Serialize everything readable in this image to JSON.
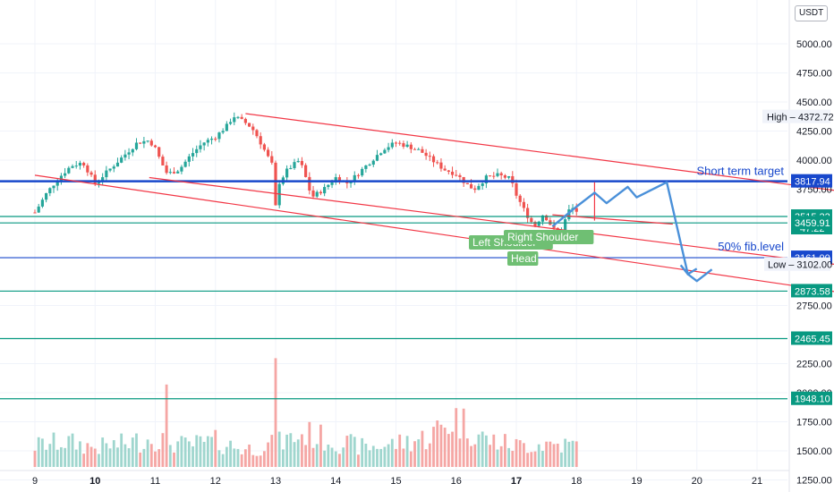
{
  "currency_label": "USDT",
  "colors": {
    "up": "#26a69a",
    "down": "#ef5350",
    "channel": "#f23645",
    "level_blue": "#1848cc",
    "level_teal": "#089981",
    "projection": "#4a90d9",
    "pattern_label": "#6fbf73",
    "price_current": "#26a69a"
  },
  "chart_data": {
    "type": "candlestick",
    "y_axis": {
      "range": [
        1150,
        5400
      ],
      "ticks": [
        "5000.00",
        "4750.00",
        "4500.00",
        "4250.00",
        "4000.00",
        "3750.00",
        "2750.00",
        "2250.00",
        "2000.00",
        "1750.00",
        "1500.00",
        "1250.00"
      ]
    },
    "x_axis": {
      "ticks": [
        {
          "label": "9",
          "bold": false
        },
        {
          "label": "10",
          "bold": true
        },
        {
          "label": "11",
          "bold": false
        },
        {
          "label": "12",
          "bold": false
        },
        {
          "label": "13",
          "bold": false
        },
        {
          "label": "14",
          "bold": false
        },
        {
          "label": "15",
          "bold": false
        },
        {
          "label": "16",
          "bold": false
        },
        {
          "label": "17",
          "bold": true
        },
        {
          "label": "18",
          "bold": false
        },
        {
          "label": "19",
          "bold": false
        },
        {
          "label": "20",
          "bold": false
        },
        {
          "label": "21",
          "bold": false
        }
      ]
    },
    "price_levels": [
      {
        "label": "3817.94",
        "value": 3817.94,
        "color": "level_blue",
        "thick": true
      },
      {
        "label": "3515.22",
        "sublabel": "47:22",
        "value": 3515.22,
        "color": "level_teal",
        "thick": false
      },
      {
        "label": "3459.91",
        "value": 3459.91,
        "color": "level_teal",
        "thick": false
      },
      {
        "label": "3161.00",
        "value": 3161.0,
        "color": "level_blue",
        "thick": false
      },
      {
        "label": "2873.58",
        "value": 2873.58,
        "color": "level_teal",
        "thick": false
      },
      {
        "label": "2465.45",
        "value": 2465.45,
        "color": "level_teal",
        "thick": false
      },
      {
        "label": "1948.10",
        "value": 1948.1,
        "color": "level_teal",
        "thick": false
      }
    ],
    "high_label": "High",
    "high_value": "4372.72",
    "low_label": "Low",
    "low_value": "3102.00",
    "annotations": {
      "short_term_target": "Short term target",
      "fib_level": "50% fib.level"
    },
    "pattern_labels": {
      "left_shoulder": "Left Shoulder",
      "head": "Head",
      "right_shoulder": "Right Shoulder"
    },
    "price_path": [
      [
        0,
        3550
      ],
      [
        0.2,
        3720
      ],
      [
        0.4,
        3850
      ],
      [
        0.6,
        3950
      ],
      [
        0.8,
        3980
      ],
      [
        1.0,
        3800
      ],
      [
        1.2,
        3900
      ],
      [
        1.5,
        4050
      ],
      [
        1.7,
        4150
      ],
      [
        1.9,
        4170
      ],
      [
        2.0,
        4100
      ],
      [
        2.1,
        3980
      ],
      [
        2.2,
        3880
      ],
      [
        2.4,
        3920
      ],
      [
        2.6,
        4050
      ],
      [
        2.8,
        4150
      ],
      [
        3.0,
        4200
      ],
      [
        3.2,
        4300
      ],
      [
        3.3,
        4380
      ],
      [
        3.4,
        4350
      ],
      [
        3.5,
        4320
      ],
      [
        3.6,
        4280
      ],
      [
        3.7,
        4200
      ],
      [
        3.8,
        4100
      ],
      [
        3.95,
        3950
      ],
      [
        4.0,
        3600
      ],
      [
        4.05,
        3800
      ],
      [
        4.2,
        3920
      ],
      [
        4.4,
        4000
      ],
      [
        4.5,
        3850
      ],
      [
        4.6,
        3680
      ],
      [
        4.8,
        3750
      ],
      [
        5.0,
        3850
      ],
      [
        5.2,
        3800
      ],
      [
        5.4,
        3900
      ],
      [
        5.6,
        4000
      ],
      [
        5.8,
        4100
      ],
      [
        6.0,
        4150
      ],
      [
        6.2,
        4120
      ],
      [
        6.4,
        4080
      ],
      [
        6.6,
        4000
      ],
      [
        6.8,
        3920
      ],
      [
        7.0,
        3880
      ],
      [
        7.2,
        3780
      ],
      [
        7.3,
        3750
      ],
      [
        7.5,
        3850
      ],
      [
        7.7,
        3870
      ],
      [
        7.9,
        3840
      ],
      [
        8.0,
        3700
      ],
      [
        8.15,
        3550
      ],
      [
        8.3,
        3430
      ],
      [
        8.45,
        3540
      ],
      [
        8.6,
        3420
      ],
      [
        8.7,
        3350
      ],
      [
        8.8,
        3470
      ],
      [
        8.9,
        3600
      ],
      [
        9.0,
        3560
      ]
    ],
    "volume_profile": [
      [
        0,
        0.22
      ],
      [
        1,
        0.26
      ],
      [
        2,
        0.2
      ],
      [
        3,
        0.24
      ],
      [
        4,
        0.3
      ],
      [
        5,
        0.22
      ],
      [
        6,
        0.26
      ],
      [
        7,
        0.18
      ],
      [
        8,
        0.24
      ],
      [
        9,
        0.34
      ],
      [
        10,
        0.26
      ],
      [
        11,
        0.2
      ],
      [
        12,
        0.24
      ],
      [
        13,
        0.3
      ],
      [
        14,
        0.5
      ],
      [
        15,
        0.28
      ],
      [
        16,
        0.22
      ],
      [
        17,
        0.24
      ],
      [
        18,
        0.22
      ],
      [
        19,
        0.26
      ]
    ],
    "volume_spikes": [
      [
        2.2,
        0.72
      ],
      [
        4.0,
        0.95
      ]
    ],
    "projection": [
      [
        8.6,
        3430
      ],
      [
        9.0,
        3600
      ],
      [
        9.3,
        3720
      ],
      [
        9.5,
        3630
      ],
      [
        9.85,
        3770
      ],
      [
        10.0,
        3680
      ],
      [
        10.5,
        3810
      ],
      [
        10.85,
        3020
      ],
      [
        11.0,
        2960
      ],
      [
        11.25,
        3060
      ]
    ],
    "channel_lines": [
      {
        "from": [
          3.5,
          4400
        ],
        "to": [
          15.8,
          3570
        ]
      },
      {
        "from": [
          1.9,
          3850
        ],
        "to": [
          15.8,
          2940
        ]
      },
      {
        "from": [
          0.0,
          3870
        ],
        "to": [
          15.8,
          2680
        ]
      },
      {
        "from": [
          8.6,
          3530
        ],
        "to": [
          10.6,
          3450
        ]
      }
    ],
    "vertical_marker": {
      "x": 9.3,
      "from": 3480,
      "to": 3810
    },
    "grid": true,
    "legend": "none"
  }
}
